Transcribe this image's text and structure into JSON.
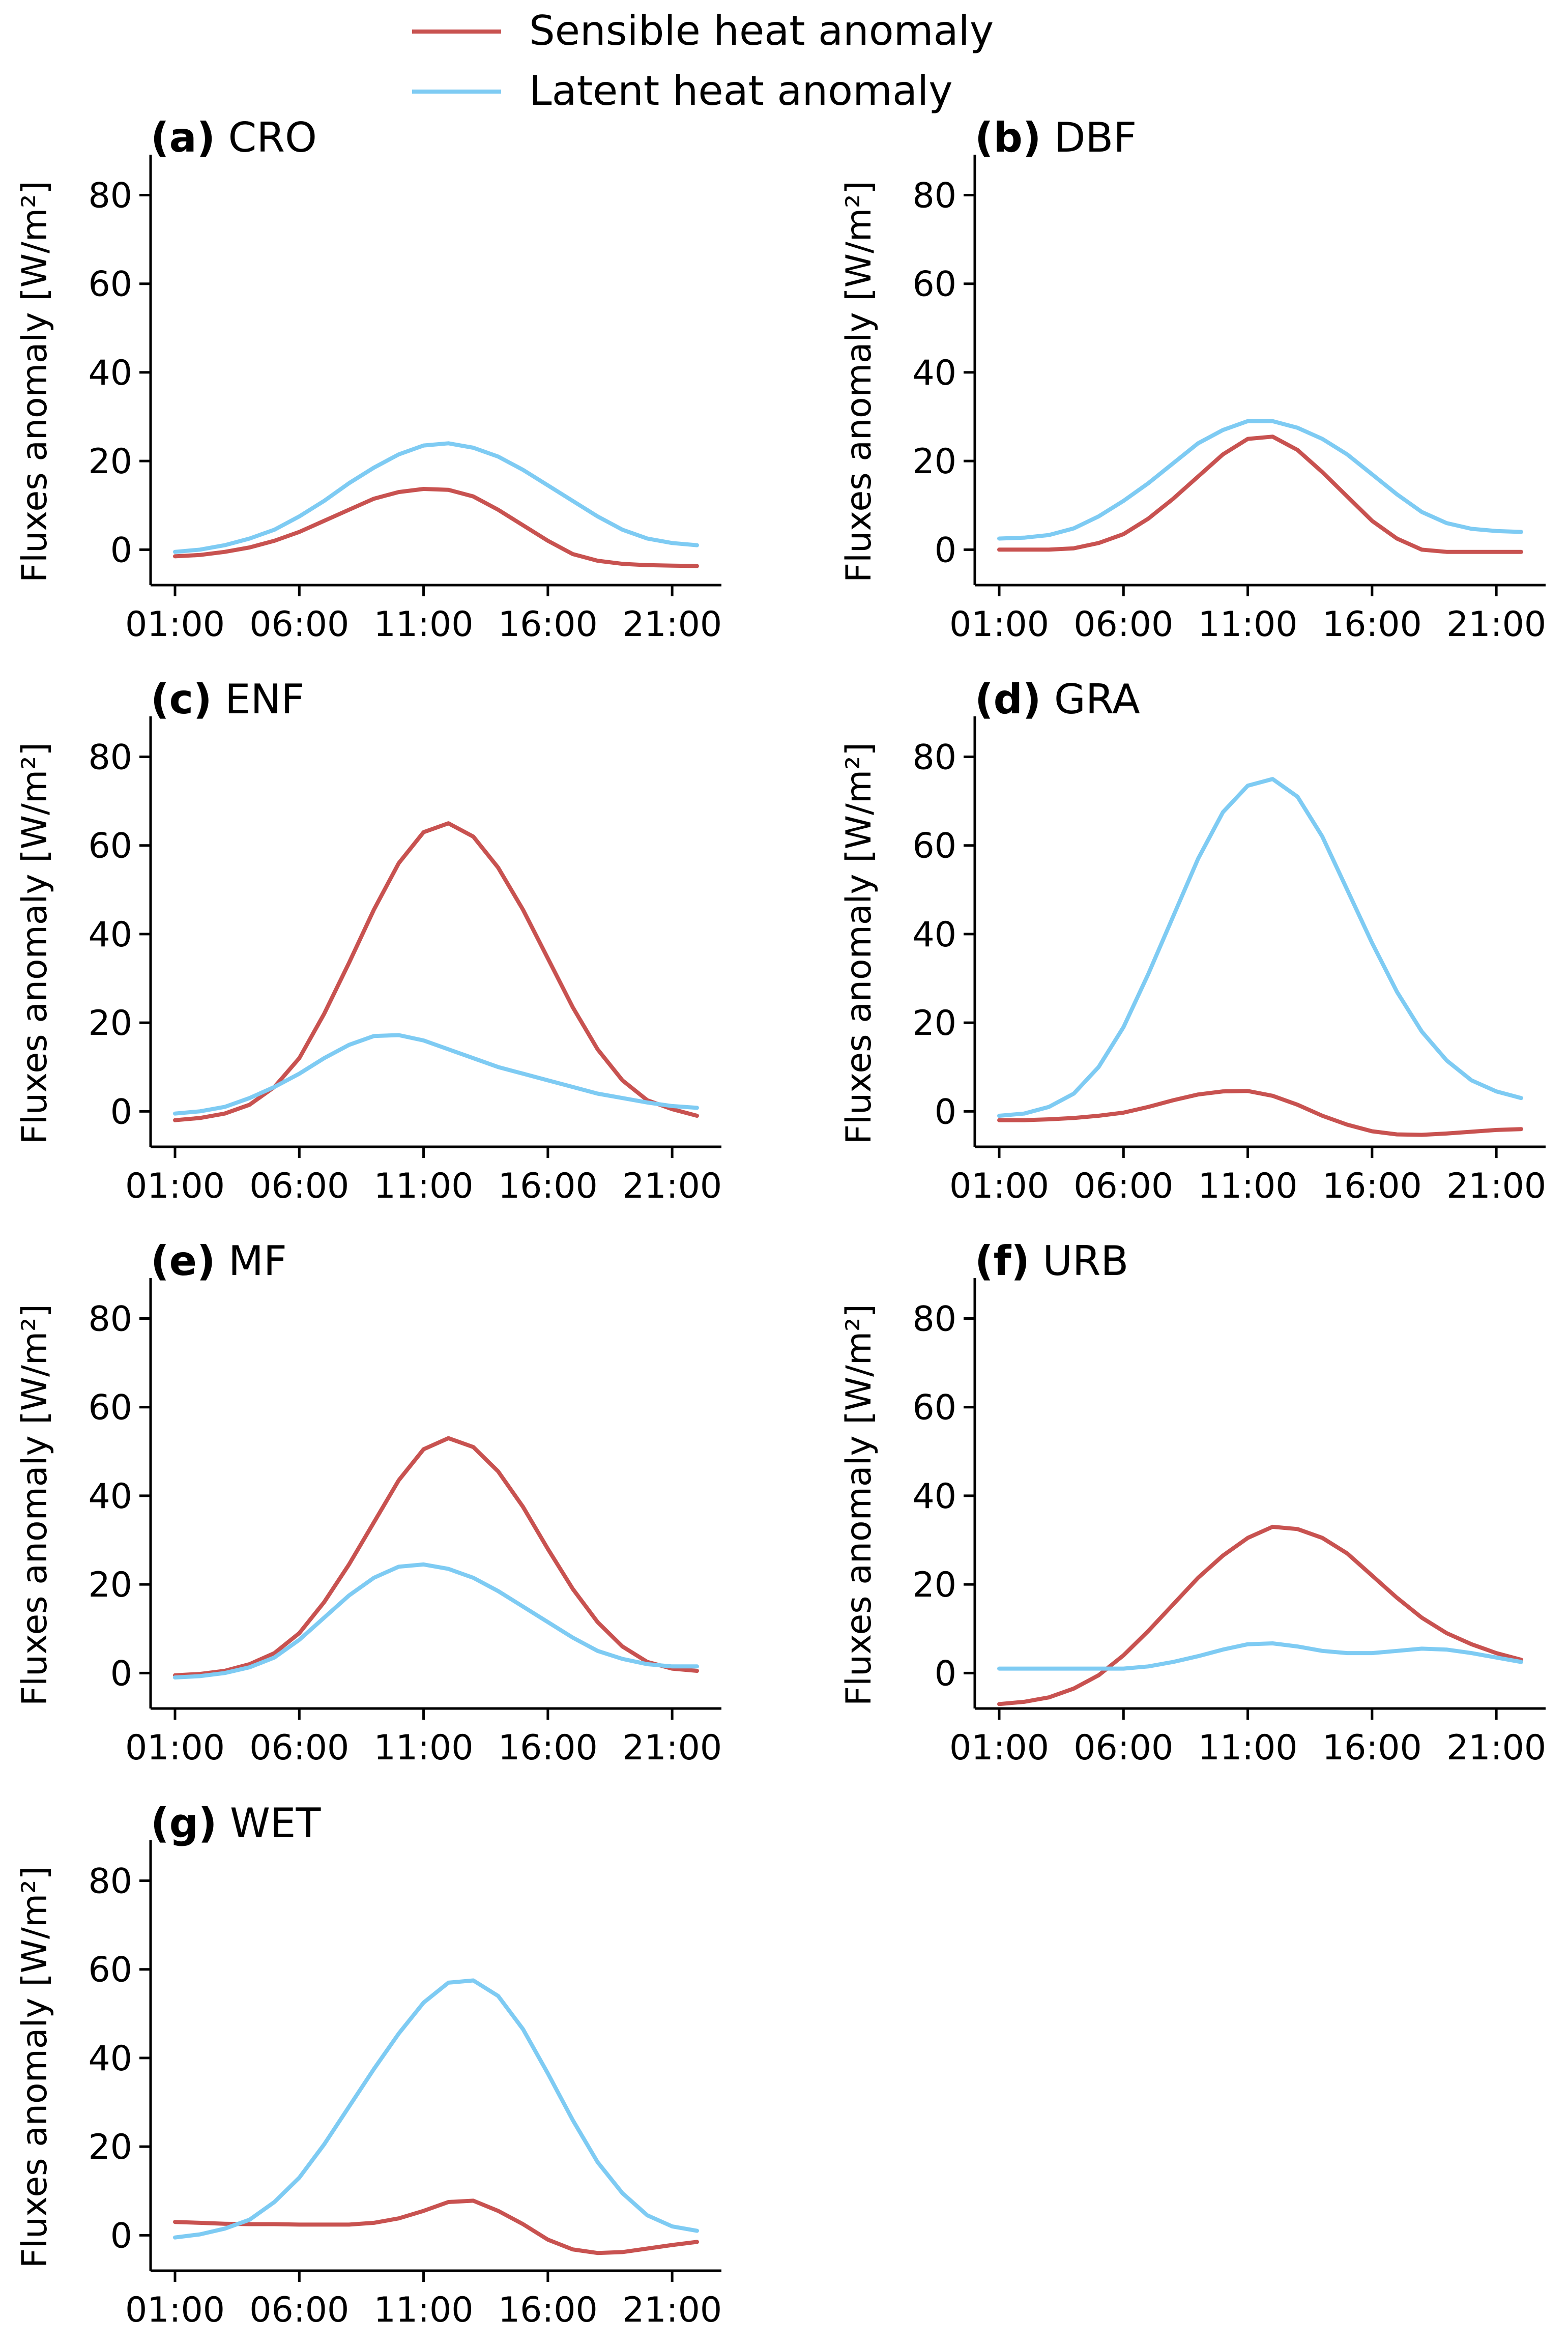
{
  "legend": {
    "entries": [
      {
        "label": "Sensible heat anomaly",
        "color": "#c85250"
      },
      {
        "label": "Latent heat anomaly",
        "color": "#7ecbf3"
      }
    ]
  },
  "chart_data": [
    {
      "type": "line",
      "panel": "(a)",
      "title": "CRO",
      "ylabel": "Fluxes anomaly [W/m²]",
      "xlabel": "",
      "ylim": [
        -8,
        85
      ],
      "yticks": [
        0,
        20,
        40,
        60,
        80
      ],
      "xticks": [
        "01:00",
        "06:00",
        "11:00",
        "16:00",
        "21:00"
      ],
      "x": [
        1,
        2,
        3,
        4,
        5,
        6,
        7,
        8,
        9,
        10,
        11,
        12,
        13,
        14,
        15,
        16,
        17,
        18,
        19,
        20,
        21,
        22
      ],
      "series": [
        {
          "name": "Sensible heat anomaly",
          "values": [
            -1.5,
            -1.2,
            -0.5,
            0.5,
            2,
            4,
            6.5,
            9,
            11.5,
            13,
            13.7,
            13.5,
            12,
            9,
            5.5,
            2,
            -1,
            -2.5,
            -3.2,
            -3.5,
            -3.6,
            -3.7
          ]
        },
        {
          "name": "Latent heat anomaly",
          "values": [
            -0.5,
            0,
            1,
            2.5,
            4.5,
            7.5,
            11,
            15,
            18.5,
            21.5,
            23.5,
            24,
            23,
            21,
            18,
            14.5,
            11,
            7.5,
            4.5,
            2.5,
            1.5,
            1
          ]
        }
      ]
    },
    {
      "type": "line",
      "panel": "(b)",
      "title": "DBF",
      "ylabel": "Fluxes anomaly [W/m²]",
      "xlabel": "",
      "ylim": [
        -8,
        85
      ],
      "yticks": [
        0,
        20,
        40,
        60,
        80
      ],
      "xticks": [
        "01:00",
        "06:00",
        "11:00",
        "16:00",
        "21:00"
      ],
      "x": [
        1,
        2,
        3,
        4,
        5,
        6,
        7,
        8,
        9,
        10,
        11,
        12,
        13,
        14,
        15,
        16,
        17,
        18,
        19,
        20,
        21,
        22
      ],
      "series": [
        {
          "name": "Sensible heat anomaly",
          "values": [
            0,
            0,
            0,
            0.3,
            1.5,
            3.5,
            7,
            11.5,
            16.5,
            21.5,
            25,
            25.5,
            22.5,
            17.5,
            12,
            6.5,
            2.5,
            0,
            -0.5,
            -0.5,
            -0.5,
            -0.5
          ]
        },
        {
          "name": "Latent heat anomaly",
          "values": [
            2.5,
            2.7,
            3.3,
            4.8,
            7.5,
            11,
            15,
            19.5,
            24,
            27,
            29,
            29,
            27.5,
            25,
            21.5,
            17,
            12.5,
            8.5,
            6,
            4.7,
            4.2,
            4
          ]
        }
      ]
    },
    {
      "type": "line",
      "panel": "(c)",
      "title": "ENF",
      "ylabel": "Fluxes anomaly [W/m²]",
      "xlabel": "",
      "ylim": [
        -8,
        85
      ],
      "yticks": [
        0,
        20,
        40,
        60,
        80
      ],
      "xticks": [
        "01:00",
        "06:00",
        "11:00",
        "16:00",
        "21:00"
      ],
      "x": [
        1,
        2,
        3,
        4,
        5,
        6,
        7,
        8,
        9,
        10,
        11,
        12,
        13,
        14,
        15,
        16,
        17,
        18,
        19,
        20,
        21,
        22
      ],
      "series": [
        {
          "name": "Sensible heat anomaly",
          "values": [
            -2,
            -1.5,
            -0.5,
            1.5,
            5.5,
            12,
            22,
            33.5,
            45.5,
            56,
            63,
            65,
            62,
            55,
            45.5,
            34.5,
            23.5,
            14,
            7,
            2.5,
            0.5,
            -1
          ]
        },
        {
          "name": "Latent heat anomaly",
          "values": [
            -0.5,
            0,
            1,
            3,
            5.5,
            8.5,
            12,
            15,
            17,
            17.2,
            16,
            14,
            12,
            10,
            8.5,
            7,
            5.5,
            4,
            3,
            2,
            1.2,
            0.8
          ]
        }
      ]
    },
    {
      "type": "line",
      "panel": "(d)",
      "title": "GRA",
      "ylabel": "Fluxes anomaly [W/m²]",
      "xlabel": "",
      "ylim": [
        -8,
        85
      ],
      "yticks": [
        0,
        20,
        40,
        60,
        80
      ],
      "xticks": [
        "01:00",
        "06:00",
        "11:00",
        "16:00",
        "21:00"
      ],
      "x": [
        1,
        2,
        3,
        4,
        5,
        6,
        7,
        8,
        9,
        10,
        11,
        12,
        13,
        14,
        15,
        16,
        17,
        18,
        19,
        20,
        21,
        22
      ],
      "series": [
        {
          "name": "Sensible heat anomaly",
          "values": [
            -2,
            -2,
            -1.8,
            -1.5,
            -1,
            -0.3,
            1,
            2.5,
            3.8,
            4.5,
            4.6,
            3.5,
            1.5,
            -1,
            -3,
            -4.5,
            -5.2,
            -5.3,
            -5,
            -4.6,
            -4.2,
            -4
          ]
        },
        {
          "name": "Latent heat anomaly",
          "values": [
            -1,
            -0.5,
            1,
            4,
            10,
            19,
            31,
            44,
            57,
            67.5,
            73.5,
            75,
            71,
            62,
            50,
            38,
            27,
            18,
            11.5,
            7,
            4.5,
            3
          ]
        }
      ]
    },
    {
      "type": "line",
      "panel": "(e)",
      "title": "MF",
      "ylabel": "Fluxes anomaly [W/m²]",
      "xlabel": "",
      "ylim": [
        -8,
        85
      ],
      "yticks": [
        0,
        20,
        40,
        60,
        80
      ],
      "xticks": [
        "01:00",
        "06:00",
        "11:00",
        "16:00",
        "21:00"
      ],
      "x": [
        1,
        2,
        3,
        4,
        5,
        6,
        7,
        8,
        9,
        10,
        11,
        12,
        13,
        14,
        15,
        16,
        17,
        18,
        19,
        20,
        21,
        22
      ],
      "series": [
        {
          "name": "Sensible heat anomaly",
          "values": [
            -0.5,
            -0.2,
            0.5,
            2,
            4.5,
            9,
            16,
            24.5,
            34,
            43.5,
            50.5,
            53,
            51,
            45.5,
            37.5,
            28,
            19,
            11.5,
            6,
            2.5,
            1,
            0.5
          ]
        },
        {
          "name": "Latent heat anomaly",
          "values": [
            -1,
            -0.7,
            0,
            1.3,
            3.5,
            7.5,
            12.5,
            17.5,
            21.5,
            24,
            24.5,
            23.5,
            21.5,
            18.5,
            15,
            11.5,
            8,
            5,
            3.2,
            2,
            1.5,
            1.5
          ]
        }
      ]
    },
    {
      "type": "line",
      "panel": "(f)",
      "title": "URB",
      "ylabel": "Fluxes anomaly [W/m²]",
      "xlabel": "",
      "ylim": [
        -8,
        85
      ],
      "yticks": [
        0,
        20,
        40,
        60,
        80
      ],
      "xticks": [
        "01:00",
        "06:00",
        "11:00",
        "16:00",
        "21:00"
      ],
      "x": [
        1,
        2,
        3,
        4,
        5,
        6,
        7,
        8,
        9,
        10,
        11,
        12,
        13,
        14,
        15,
        16,
        17,
        18,
        19,
        20,
        21,
        22
      ],
      "series": [
        {
          "name": "Sensible heat anomaly",
          "values": [
            -7,
            -6.5,
            -5.5,
            -3.5,
            -0.5,
            4,
            9.5,
            15.5,
            21.5,
            26.5,
            30.5,
            33,
            32.5,
            30.5,
            27,
            22,
            17,
            12.5,
            9,
            6.5,
            4.5,
            3
          ]
        },
        {
          "name": "Latent heat anomaly",
          "values": [
            1,
            1,
            1,
            1,
            1,
            1,
            1.5,
            2.5,
            3.8,
            5.3,
            6.5,
            6.7,
            6,
            5,
            4.5,
            4.5,
            5,
            5.5,
            5.3,
            4.5,
            3.5,
            2.5
          ]
        }
      ]
    },
    {
      "type": "line",
      "panel": "(g)",
      "title": "WET",
      "ylabel": "Fluxes anomaly [W/m²]",
      "xlabel": "",
      "ylim": [
        -8,
        85
      ],
      "yticks": [
        0,
        20,
        40,
        60,
        80
      ],
      "xticks": [
        "01:00",
        "06:00",
        "11:00",
        "16:00",
        "21:00"
      ],
      "x": [
        1,
        2,
        3,
        4,
        5,
        6,
        7,
        8,
        9,
        10,
        11,
        12,
        13,
        14,
        15,
        16,
        17,
        18,
        19,
        20,
        21,
        22
      ],
      "series": [
        {
          "name": "Sensible heat anomaly",
          "values": [
            3,
            2.8,
            2.6,
            2.5,
            2.5,
            2.4,
            2.4,
            2.4,
            2.8,
            3.8,
            5.5,
            7.5,
            7.8,
            5.5,
            2.5,
            -1,
            -3.2,
            -4,
            -3.8,
            -3,
            -2.2,
            -1.5
          ]
        },
        {
          "name": "Latent heat anomaly",
          "values": [
            -0.5,
            0.2,
            1.5,
            3.5,
            7.5,
            13,
            20.5,
            29,
            37.5,
            45.5,
            52.5,
            57,
            57.5,
            54,
            46.5,
            36.5,
            26,
            16.5,
            9.5,
            4.5,
            2,
            1
          ]
        }
      ]
    }
  ]
}
